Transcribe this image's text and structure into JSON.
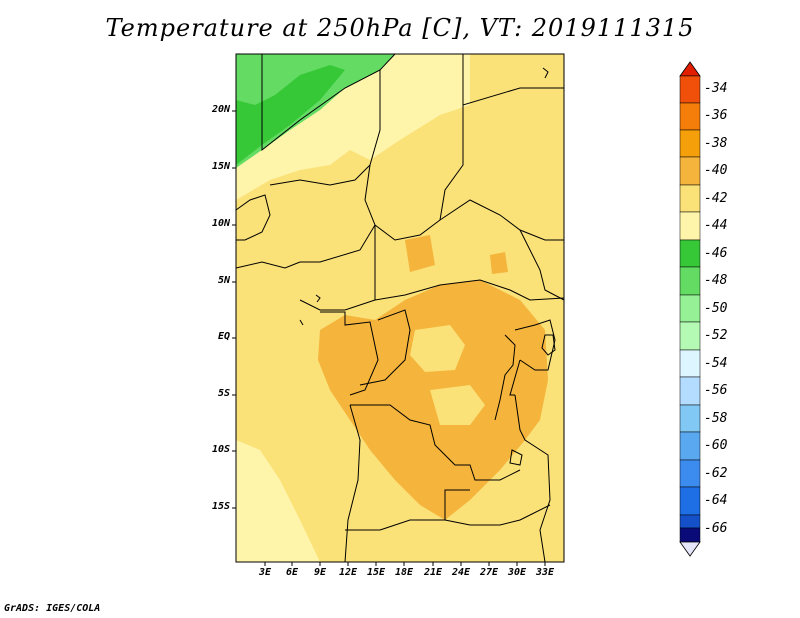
{
  "title": "Temperature at 250hPa [C], VT: 2019111315",
  "credit": "GrADS: IGES/COLA",
  "lat_labels": [
    "20N",
    "15N",
    "10N",
    "5N",
    "EQ",
    "5S",
    "10S",
    "15S"
  ],
  "lon_labels": [
    "3E",
    "6E",
    "9E",
    "12E",
    "15E",
    "18E",
    "21E",
    "24E",
    "27E",
    "30E",
    "33E"
  ],
  "colorbar": {
    "labels": [
      "-34",
      "-36",
      "-38",
      "-40",
      "-42",
      "-44",
      "-46",
      "-48",
      "-50",
      "-52",
      "-54",
      "-56",
      "-58",
      "-60",
      "-62",
      "-64",
      "-66"
    ],
    "colors": [
      "#f0500a",
      "#f57d0a",
      "#f5a00a",
      "#f5b43c",
      "#fae178",
      "#fff5aa",
      "#37c837",
      "#64dc64",
      "#96f096",
      "#b4fab4",
      "#dcf5ff",
      "#b4dcff",
      "#82c8f5",
      "#5aa8f0",
      "#3c8cf0",
      "#1e6ee6",
      "#1450c8",
      "#0a0a78"
    ],
    "over_color": "#e11e00",
    "under_color": "#e6e6fa"
  },
  "map": {
    "dominant_color": "#fae178",
    "warm_patch_color": "#f5b43c",
    "cool_color": "#fff5aa",
    "green_color": "#64dc64",
    "dark_green_color": "#37c837"
  }
}
